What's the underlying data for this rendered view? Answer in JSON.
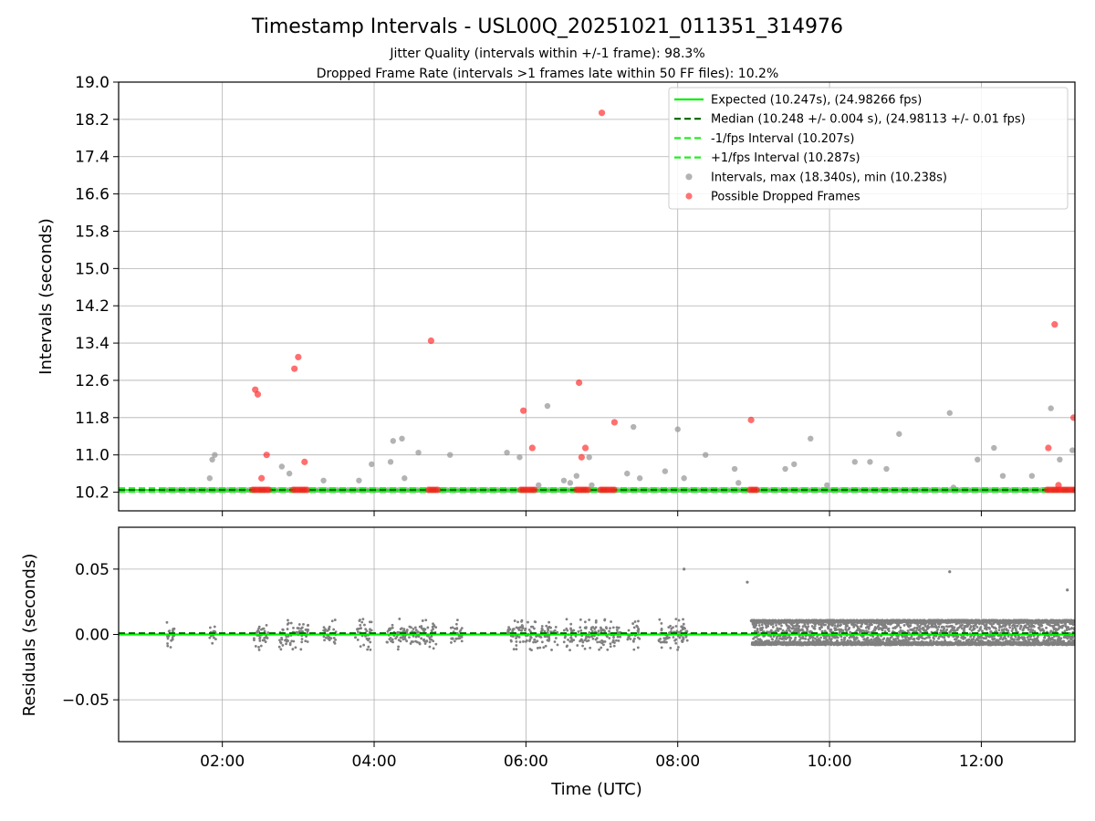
{
  "chart_data": [
    {
      "type": "scatter",
      "title": "Timestamp Intervals - USL00Q_20251021_011351_314976",
      "subtitle_lines": [
        "Jitter Quality (intervals within +/-1 frame): 98.3%",
        "Dropped Frame Rate (intervals >1 frames late within 50 FF files): 10.2%"
      ],
      "ylabel": "Intervals (seconds)",
      "xlim": [
        "00:38",
        "13:14"
      ],
      "ylim": [
        9.8,
        19.0
      ],
      "yticks": [
        "10.2",
        "11.0",
        "11.8",
        "12.6",
        "13.4",
        "14.2",
        "15.0",
        "15.8",
        "16.6",
        "17.4",
        "18.2",
        "19.0"
      ],
      "xticks": [
        "02:00",
        "04:00",
        "06:00",
        "08:00",
        "10:00",
        "12:00"
      ],
      "grid": true,
      "legend_position": "top-right",
      "legend": [
        {
          "label": "Expected (10.247s), (24.98266 fps)",
          "style": "solid",
          "color": "#00ee00"
        },
        {
          "label": "Median (10.248 +/- 0.004 s), (24.98113 +/- 0.01 fps)",
          "style": "dashed",
          "color": "#006400"
        },
        {
          "label": "-1/fps Interval (10.207s)",
          "style": "dashed",
          "color": "#22ee22"
        },
        {
          "label": "+1/fps Interval (10.287s)",
          "style": "dashed",
          "color": "#22ee22"
        },
        {
          "label": "Intervals, max (18.340s), min (10.238s)",
          "style": "dot",
          "color": "#999999"
        },
        {
          "label": "Possible Dropped Frames",
          "style": "dot",
          "color": "#ff4444"
        }
      ],
      "reference_lines": {
        "expected": 10.247,
        "median": 10.248,
        "minus_one_frame": 10.207,
        "plus_one_frame": 10.287
      },
      "baseline": {
        "value": 10.247,
        "start": "01:15",
        "end": "13:14"
      },
      "series": [
        {
          "name": "Intervals, max (18.340s), min (10.238s)",
          "points": [
            [
              "01:50",
              10.5
            ],
            [
              "01:52",
              10.9
            ],
            [
              "01:54",
              11.0
            ],
            [
              "02:47",
              10.75
            ],
            [
              "02:53",
              10.6
            ],
            [
              "03:20",
              10.45
            ],
            [
              "03:48",
              10.45
            ],
            [
              "03:58",
              10.8
            ],
            [
              "04:13",
              10.85
            ],
            [
              "04:15",
              11.3
            ],
            [
              "04:22",
              11.35
            ],
            [
              "04:24",
              10.5
            ],
            [
              "04:35",
              11.05
            ],
            [
              "05:00",
              11.0
            ],
            [
              "05:45",
              11.05
            ],
            [
              "05:55",
              10.95
            ],
            [
              "06:10",
              10.35
            ],
            [
              "06:17",
              12.05
            ],
            [
              "06:30",
              10.45
            ],
            [
              "06:35",
              10.4
            ],
            [
              "06:40",
              10.55
            ],
            [
              "06:50",
              10.95
            ],
            [
              "06:52",
              10.35
            ],
            [
              "07:20",
              10.6
            ],
            [
              "07:25",
              11.6
            ],
            [
              "07:30",
              10.5
            ],
            [
              "07:50",
              10.65
            ],
            [
              "08:00",
              11.55
            ],
            [
              "08:05",
              10.5
            ],
            [
              "08:22",
              11.0
            ],
            [
              "08:45",
              10.7
            ],
            [
              "08:48",
              10.4
            ],
            [
              "09:25",
              10.7
            ],
            [
              "09:32",
              10.8
            ],
            [
              "09:45",
              11.35
            ],
            [
              "09:58",
              10.35
            ],
            [
              "10:20",
              10.85
            ],
            [
              "10:32",
              10.85
            ],
            [
              "10:45",
              10.7
            ],
            [
              "10:55",
              11.45
            ],
            [
              "11:35",
              11.9
            ],
            [
              "11:38",
              10.3
            ],
            [
              "11:57",
              10.9
            ],
            [
              "12:10",
              11.15
            ],
            [
              "12:17",
              10.55
            ],
            [
              "12:40",
              10.55
            ],
            [
              "12:55",
              12.0
            ],
            [
              "13:02",
              10.9
            ],
            [
              "13:12",
              11.1
            ]
          ]
        },
        {
          "name": "Possible Dropped Frames",
          "points": [
            [
              "02:26",
              12.4
            ],
            [
              "02:28",
              12.3
            ],
            [
              "02:31",
              10.5
            ],
            [
              "02:35",
              11.0
            ],
            [
              "02:57",
              12.85
            ],
            [
              "03:00",
              13.1
            ],
            [
              "03:05",
              10.85
            ],
            [
              "04:45",
              13.45
            ],
            [
              "05:58",
              11.95
            ],
            [
              "06:05",
              11.15
            ],
            [
              "06:42",
              12.55
            ],
            [
              "06:44",
              10.95
            ],
            [
              "06:47",
              11.15
            ],
            [
              "07:00",
              18.34
            ],
            [
              "07:10",
              11.7
            ],
            [
              "08:58",
              11.75
            ],
            [
              "12:53",
              11.15
            ],
            [
              "12:58",
              13.8
            ],
            [
              "13:01",
              10.35
            ],
            [
              "13:13",
              11.8
            ]
          ],
          "clusters": [
            {
              "start": "02:24",
              "end": "02:37",
              "value": 10.25
            },
            {
              "start": "02:56",
              "end": "03:08",
              "value": 10.25
            },
            {
              "start": "04:43",
              "end": "04:52",
              "value": 10.25
            },
            {
              "start": "05:56",
              "end": "06:07",
              "value": 10.25
            },
            {
              "start": "06:40",
              "end": "06:50",
              "value": 10.25
            },
            {
              "start": "06:59",
              "end": "07:11",
              "value": 10.25
            },
            {
              "start": "08:57",
              "end": "09:04",
              "value": 10.25
            },
            {
              "start": "12:52",
              "end": "13:14",
              "value": 10.25
            }
          ]
        }
      ]
    },
    {
      "type": "scatter",
      "xlabel": "Time (UTC)",
      "ylabel": "Residuals (seconds)",
      "xlim": [
        "00:38",
        "13:14"
      ],
      "ylim": [
        -0.082,
        0.082
      ],
      "yticks": [
        "0.05",
        "0.00",
        "−0.05"
      ],
      "xticks": [
        "02:00",
        "04:00",
        "06:00",
        "08:00",
        "10:00",
        "12:00"
      ],
      "grid": true,
      "reference_lines": {
        "expected": 0.0,
        "median": 0.001
      },
      "series": [
        {
          "color": "#808080",
          "notes_points": "sparse residuals before 08:58, dense band from 08:58 to end",
          "outliers": [
            [
              "08:05",
              0.05
            ],
            [
              "08:55",
              0.04
            ],
            [
              "11:35",
              0.048
            ],
            [
              "13:08",
              0.034
            ]
          ],
          "sparse_ranges": [
            [
              "01:15",
              "01:22"
            ],
            [
              "01:50",
              "01:55"
            ],
            [
              "02:25",
              "02:37"
            ],
            [
              "02:45",
              "03:08"
            ],
            [
              "03:20",
              "03:30"
            ],
            [
              "03:45",
              "03:58"
            ],
            [
              "04:10",
              "04:50"
            ],
            [
              "05:00",
              "05:10"
            ],
            [
              "05:45",
              "06:25"
            ],
            [
              "06:30",
              "07:15"
            ],
            [
              "07:20",
              "07:30"
            ],
            [
              "07:45",
              "08:10"
            ]
          ],
          "sparse_y_range": [
            -0.012,
            0.012
          ],
          "dense_range": [
            "08:58",
            "13:14"
          ],
          "dense_y_range": [
            -0.008,
            0.011
          ]
        }
      ]
    }
  ]
}
